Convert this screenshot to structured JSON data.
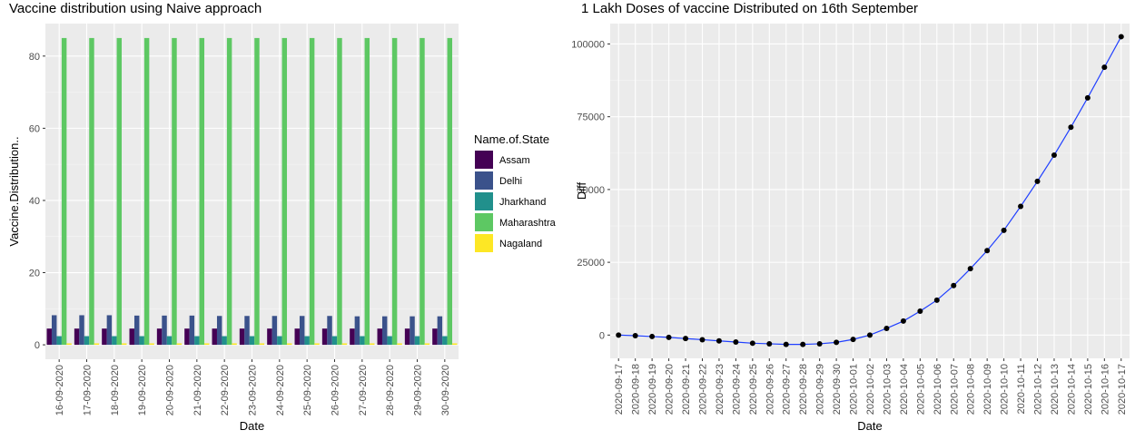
{
  "chart_data": [
    {
      "type": "bar",
      "title": "Vaccine distribution using Naive approach",
      "xlabel": "Date",
      "ylabel": "Vaccine.Distribution..",
      "ylim": [
        -4,
        89
      ],
      "y_ticks": [
        0,
        20,
        40,
        60,
        80
      ],
      "grid": true,
      "legend_position": "right",
      "legend_title": "Name.of.State",
      "categories": [
        "16-09-2020",
        "17-09-2020",
        "18-09-2020",
        "19-09-2020",
        "20-09-2020",
        "21-09-2020",
        "22-09-2020",
        "23-09-2020",
        "24-09-2020",
        "25-09-2020",
        "26-09-2020",
        "27-09-2020",
        "28-09-2020",
        "29-09-2020",
        "30-09-2020"
      ],
      "series": [
        {
          "name": "Assam",
          "color": "#440154",
          "values": [
            4.5,
            4.5,
            4.5,
            4.5,
            4.5,
            4.5,
            4.5,
            4.5,
            4.5,
            4.5,
            4.5,
            4.5,
            4.5,
            4.5,
            4.5
          ]
        },
        {
          "name": "Delhi",
          "color": "#3B528B",
          "values": [
            8.2,
            8.2,
            8.2,
            8.1,
            8.1,
            8.1,
            8.0,
            8.0,
            8.0,
            8.0,
            8.0,
            7.9,
            7.9,
            7.9,
            7.9
          ]
        },
        {
          "name": "Jharkhand",
          "color": "#21908C",
          "values": [
            2.4,
            2.4,
            2.4,
            2.4,
            2.4,
            2.4,
            2.4,
            2.4,
            2.4,
            2.4,
            2.4,
            2.4,
            2.4,
            2.4,
            2.4
          ]
        },
        {
          "name": "Maharashtra",
          "color": "#5DC863",
          "values": [
            85,
            85,
            85,
            85,
            85,
            85,
            85,
            85,
            85,
            85,
            85,
            85,
            85,
            85,
            85
          ]
        },
        {
          "name": "Nagaland",
          "color": "#FDE725",
          "values": [
            0.4,
            0.4,
            0.4,
            0.4,
            0.4,
            0.4,
            0.4,
            0.4,
            0.4,
            0.4,
            0.4,
            0.4,
            0.4,
            0.4,
            0.4
          ]
        }
      ]
    },
    {
      "type": "line",
      "title": "1 Lakh Doses of vaccine Distributed on 16th September",
      "xlabel": "Date",
      "ylabel": "Diff",
      "ylim": [
        -8000,
        107000
      ],
      "y_ticks": [
        0,
        25000,
        50000,
        75000,
        100000
      ],
      "grid": true,
      "line_color": "#1F3FFF",
      "point_color": "#000000",
      "x": [
        "2020-09-17",
        "2020-09-18",
        "2020-09-19",
        "2020-09-20",
        "2020-09-21",
        "2020-09-22",
        "2020-09-23",
        "2020-09-24",
        "2020-09-25",
        "2020-09-26",
        "2020-09-27",
        "2020-09-28",
        "2020-09-29",
        "2020-09-30",
        "2020-10-01",
        "2020-10-02",
        "2020-10-03",
        "2020-10-04",
        "2020-10-05",
        "2020-10-06",
        "2020-10-07",
        "2020-10-08",
        "2020-10-09",
        "2020-10-10",
        "2020-10-11",
        "2020-10-12",
        "2020-10-13",
        "2020-10-14",
        "2020-10-15",
        "2020-10-16",
        "2020-10-17"
      ],
      "y": [
        0,
        -200,
        -500,
        -800,
        -1200,
        -1600,
        -2000,
        -2400,
        -2800,
        -3000,
        -3200,
        -3200,
        -3000,
        -2500,
        -1500,
        0,
        2300,
        4800,
        8200,
        12000,
        17000,
        22800,
        29000,
        36000,
        44200,
        52800,
        61800,
        71400,
        81500,
        92000,
        102500
      ]
    }
  ]
}
